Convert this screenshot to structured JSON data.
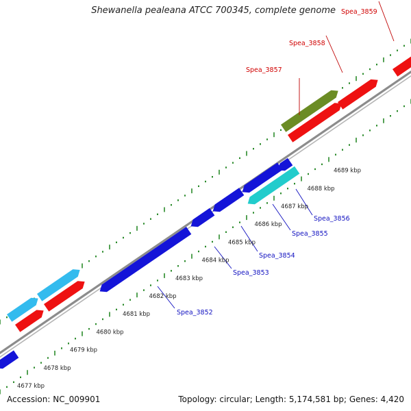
{
  "title": "Shewanella pealeana ATCC 700345, complete genome",
  "accession": "Accession: NC_009901",
  "summary": "Topology: circular; Length: 5,174,581 bp; Genes: 4,420",
  "colors": {
    "backbone": "#8c8c8c",
    "tick": "#2a8a2a",
    "forward_label": "#d00000",
    "reverse_label": "#1010c0",
    "forward_gene": "#ee1111",
    "reverse_gene": "#1414d8",
    "cyan_gene": "#22cccc",
    "light_blue_gene": "#33bbee",
    "olive_gene": "#6b8c24"
  },
  "scale_labels": [
    "4677 kbp",
    "4678 kbp",
    "4679 kbp",
    "4680 kbp",
    "4681 kbp",
    "4682 kbp",
    "4683 kbp",
    "4684 kbp",
    "4685 kbp",
    "4686 kbp",
    "4687 kbp",
    "4688 kbp",
    "4689 kbp"
  ],
  "gene_labels_forward": [
    "Spea_3857",
    "Spea_3858",
    "Spea_3859"
  ],
  "gene_labels_reverse": [
    "Spea_3852",
    "Spea_3853",
    "Spea_3854",
    "Spea_3855",
    "Spea_3856"
  ]
}
